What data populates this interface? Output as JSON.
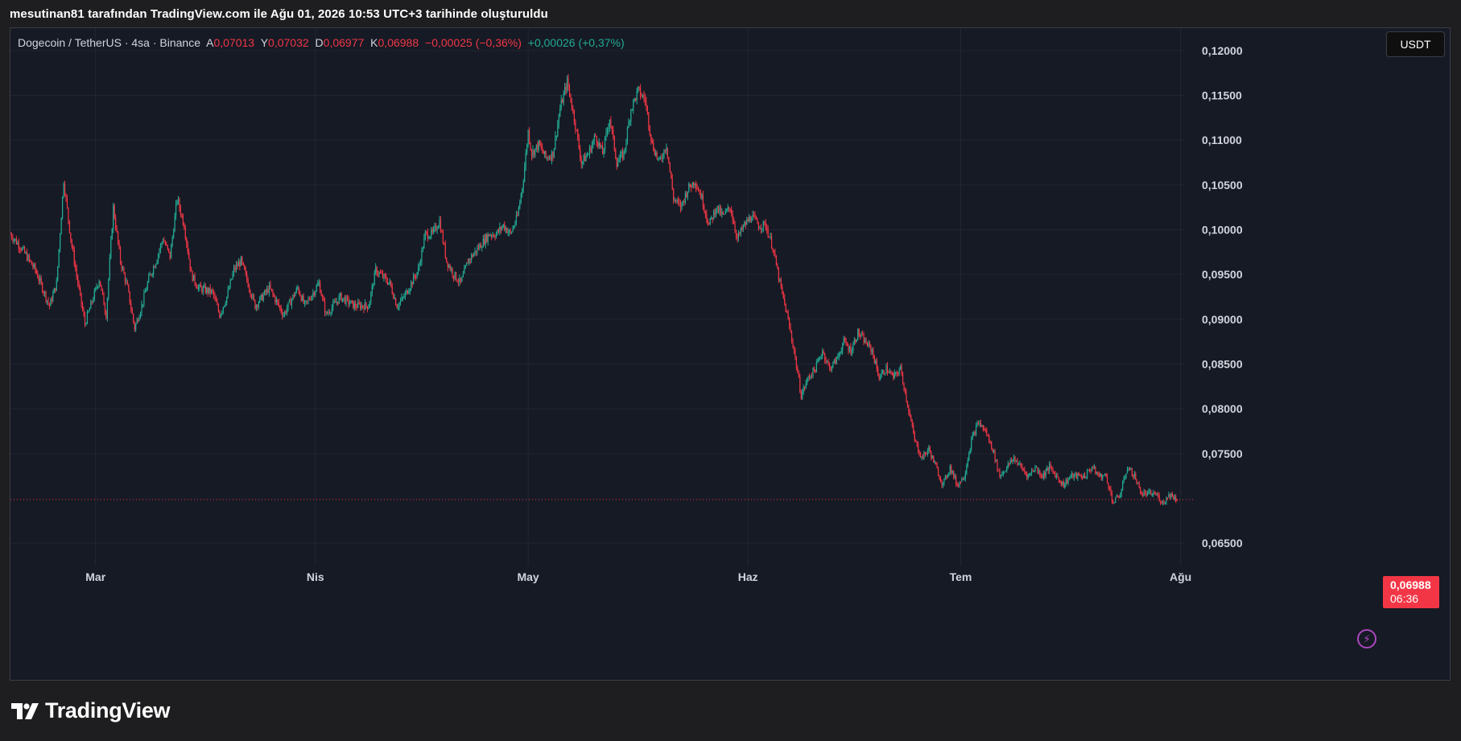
{
  "caption": "mesutinan81 tarafından TradingView.com ile Ağu 01, 2026 10:53 UTC+3 tarihinde oluşturuldu",
  "brand": "TradingView",
  "colors": {
    "up": "#22ab94",
    "down": "#f23645",
    "background": "#161a25",
    "grid": "#232632"
  },
  "legend": {
    "symbol": "Dogecoin / TetherUS · 4sa · Binance",
    "open_label": "A",
    "open": "0,07013",
    "high_label": "Y",
    "high": "0,07032",
    "low_label": "D",
    "low": "0,06977",
    "close_label": "K",
    "close": "0,06988",
    "change": "−0,00025 (−0,36%)",
    "change2": "+0,00026 (+0,37%)"
  },
  "currency_button": "USDT",
  "last_price": {
    "price": "0,06988",
    "countdown": "06:36"
  },
  "icons": {
    "alert": "lightning-bolt-icon",
    "logo": "tradingview-logo-icon"
  },
  "chart_data": {
    "type": "candlestick",
    "interval": "4sa",
    "y_ticks": [
      {
        "value": 0.12,
        "label": "0,12000"
      },
      {
        "value": 0.115,
        "label": "0,11500"
      },
      {
        "value": 0.11,
        "label": "0,11000"
      },
      {
        "value": 0.105,
        "label": "0,10500"
      },
      {
        "value": 0.1,
        "label": "0,10000"
      },
      {
        "value": 0.095,
        "label": "0,09500"
      },
      {
        "value": 0.09,
        "label": "0,09000"
      },
      {
        "value": 0.085,
        "label": "0,08500"
      },
      {
        "value": 0.08,
        "label": "0,08000"
      },
      {
        "value": 0.075,
        "label": "0,07500"
      },
      {
        "value": 0.065,
        "label": "0,06500"
      }
    ],
    "ylim": [
      0.0625,
      0.1225
    ],
    "x_ticks": [
      {
        "label": "Mar",
        "day": 15.5
      },
      {
        "label": "Nis",
        "day": 46.5
      },
      {
        "label": "May",
        "day": 76.5
      },
      {
        "label": "Haz",
        "day": 107.5
      },
      {
        "label": "Tem",
        "day": 137.5
      },
      {
        "label": "Ağu",
        "day": 168.5
      }
    ],
    "xlim": [
      3.5,
      169
    ],
    "last_close": 0.06988,
    "path": [
      [
        3.5,
        0.0995
      ],
      [
        5,
        0.098
      ],
      [
        7,
        0.0955
      ],
      [
        9,
        0.0915
      ],
      [
        10,
        0.094
      ],
      [
        11,
        0.1055
      ],
      [
        12,
        0.099
      ],
      [
        13,
        0.094
      ],
      [
        14,
        0.0895
      ],
      [
        15,
        0.092
      ],
      [
        16,
        0.0945
      ],
      [
        17,
        0.0905
      ],
      [
        18,
        0.1025
      ],
      [
        19,
        0.0965
      ],
      [
        20,
        0.0935
      ],
      [
        21,
        0.089
      ],
      [
        22,
        0.0915
      ],
      [
        23,
        0.0945
      ],
      [
        24,
        0.0965
      ],
      [
        25,
        0.099
      ],
      [
        26,
        0.097
      ],
      [
        27,
        0.1035
      ],
      [
        28,
        0.1005
      ],
      [
        29,
        0.095
      ],
      [
        30,
        0.0935
      ],
      [
        32,
        0.093
      ],
      [
        33,
        0.0905
      ],
      [
        34,
        0.0925
      ],
      [
        35,
        0.0955
      ],
      [
        36,
        0.0965
      ],
      [
        38,
        0.0915
      ],
      [
        40,
        0.0935
      ],
      [
        42,
        0.0905
      ],
      [
        44,
        0.0935
      ],
      [
        45,
        0.0915
      ],
      [
        47,
        0.094
      ],
      [
        48,
        0.0905
      ],
      [
        50,
        0.0925
      ],
      [
        52,
        0.0915
      ],
      [
        54,
        0.0915
      ],
      [
        55,
        0.0955
      ],
      [
        57,
        0.094
      ],
      [
        58,
        0.0915
      ],
      [
        59,
        0.0925
      ],
      [
        61,
        0.0955
      ],
      [
        62,
        0.0995
      ],
      [
        63,
        0.0995
      ],
      [
        64,
        0.101
      ],
      [
        65,
        0.0965
      ],
      [
        66,
        0.095
      ],
      [
        67,
        0.094
      ],
      [
        68,
        0.0965
      ],
      [
        69,
        0.0975
      ],
      [
        70,
        0.0985
      ],
      [
        71,
        0.0995
      ],
      [
        72,
        0.0995
      ],
      [
        73,
        0.1005
      ],
      [
        74,
        0.0995
      ],
      [
        75,
        0.1015
      ],
      [
        75.8,
        0.1055
      ],
      [
        76.5,
        0.111
      ],
      [
        77,
        0.1085
      ],
      [
        78,
        0.1095
      ],
      [
        79,
        0.108
      ],
      [
        80,
        0.1085
      ],
      [
        81,
        0.1135
      ],
      [
        82,
        0.1165
      ],
      [
        83,
        0.1125
      ],
      [
        84,
        0.1075
      ],
      [
        85,
        0.1085
      ],
      [
        86,
        0.1105
      ],
      [
        87,
        0.1085
      ],
      [
        88,
        0.1125
      ],
      [
        89,
        0.1075
      ],
      [
        90,
        0.1085
      ],
      [
        91,
        0.1135
      ],
      [
        92,
        0.1155
      ],
      [
        93,
        0.1145
      ],
      [
        94,
        0.1095
      ],
      [
        95,
        0.1075
      ],
      [
        96,
        0.1095
      ],
      [
        97,
        0.1035
      ],
      [
        98,
        0.1025
      ],
      [
        99,
        0.1045
      ],
      [
        100,
        0.1055
      ],
      [
        101,
        0.1035
      ],
      [
        102,
        0.1005
      ],
      [
        103,
        0.1025
      ],
      [
        104,
        0.1015
      ],
      [
        105,
        0.1025
      ],
      [
        106,
        0.099
      ],
      [
        107,
        0.1005
      ],
      [
        108,
        0.1015
      ],
      [
        109,
        0.1005
      ],
      [
        110,
        0.1005
      ],
      [
        111,
        0.098
      ],
      [
        112,
        0.094
      ],
      [
        113,
        0.0905
      ],
      [
        114,
        0.0865
      ],
      [
        115,
        0.0815
      ],
      [
        116,
        0.0835
      ],
      [
        117,
        0.0845
      ],
      [
        118,
        0.0865
      ],
      [
        119,
        0.0845
      ],
      [
        120,
        0.0855
      ],
      [
        121,
        0.0875
      ],
      [
        122,
        0.0865
      ],
      [
        123,
        0.0885
      ],
      [
        124,
        0.0875
      ],
      [
        125,
        0.0865
      ],
      [
        126,
        0.0835
      ],
      [
        127,
        0.0845
      ],
      [
        128,
        0.0835
      ],
      [
        129,
        0.0845
      ],
      [
        130,
        0.0805
      ],
      [
        131,
        0.0765
      ],
      [
        132,
        0.0745
      ],
      [
        133,
        0.0755
      ],
      [
        134,
        0.0735
      ],
      [
        135,
        0.0715
      ],
      [
        136,
        0.0735
      ],
      [
        137,
        0.0715
      ],
      [
        138,
        0.0725
      ],
      [
        139,
        0.0765
      ],
      [
        140,
        0.0785
      ],
      [
        141,
        0.0775
      ],
      [
        142,
        0.0755
      ],
      [
        143,
        0.0725
      ],
      [
        144,
        0.0735
      ],
      [
        145,
        0.0745
      ],
      [
        146,
        0.0735
      ],
      [
        147,
        0.0725
      ],
      [
        148,
        0.0735
      ],
      [
        149,
        0.0725
      ],
      [
        150,
        0.0735
      ],
      [
        151,
        0.0725
      ],
      [
        152,
        0.0715
      ],
      [
        153,
        0.0725
      ],
      [
        154,
        0.0725
      ],
      [
        155,
        0.0725
      ],
      [
        156,
        0.0735
      ],
      [
        157,
        0.0725
      ],
      [
        158,
        0.0725
      ],
      [
        159,
        0.0695
      ],
      [
        160,
        0.0705
      ],
      [
        161,
        0.0735
      ],
      [
        162,
        0.0725
      ],
      [
        163,
        0.0705
      ],
      [
        164,
        0.0705
      ],
      [
        165,
        0.0705
      ],
      [
        166,
        0.0695
      ],
      [
        167,
        0.0705
      ],
      [
        168,
        0.0699
      ]
    ]
  }
}
